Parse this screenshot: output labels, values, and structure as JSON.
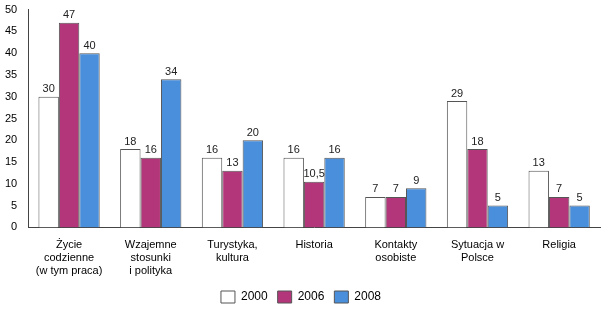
{
  "chart_data": {
    "type": "bar",
    "categories": [
      [
        "Życie",
        "codzienne",
        "(w tym praca)"
      ],
      [
        "Wzajemne",
        "stosunki",
        "i polityka"
      ],
      [
        "Turystyka,",
        "kultura"
      ],
      "Historia",
      [
        "Kontakty",
        "osobiste"
      ],
      [
        "Sytuacja w",
        "Polsce"
      ],
      "Religia"
    ],
    "series": [
      {
        "name": "2000",
        "color": "#ffffff",
        "values": [
          30,
          18,
          16,
          16,
          7,
          29,
          13
        ]
      },
      {
        "name": "2006",
        "color": "#b3367a",
        "values": [
          47,
          16,
          13,
          10.5,
          7,
          18,
          7
        ],
        "value_labels": [
          "47",
          "16",
          "13",
          "10,5",
          "7",
          "18",
          "7"
        ]
      },
      {
        "name": "2008",
        "color": "#4a8fdc",
        "values": [
          40,
          34,
          20,
          16,
          9,
          5,
          5
        ]
      }
    ],
    "ylim": [
      0,
      50
    ],
    "yticks": [
      0,
      5,
      10,
      15,
      20,
      25,
      30,
      35,
      40,
      45,
      50
    ],
    "grid": false,
    "legend": "bottom",
    "data_labels": true
  }
}
